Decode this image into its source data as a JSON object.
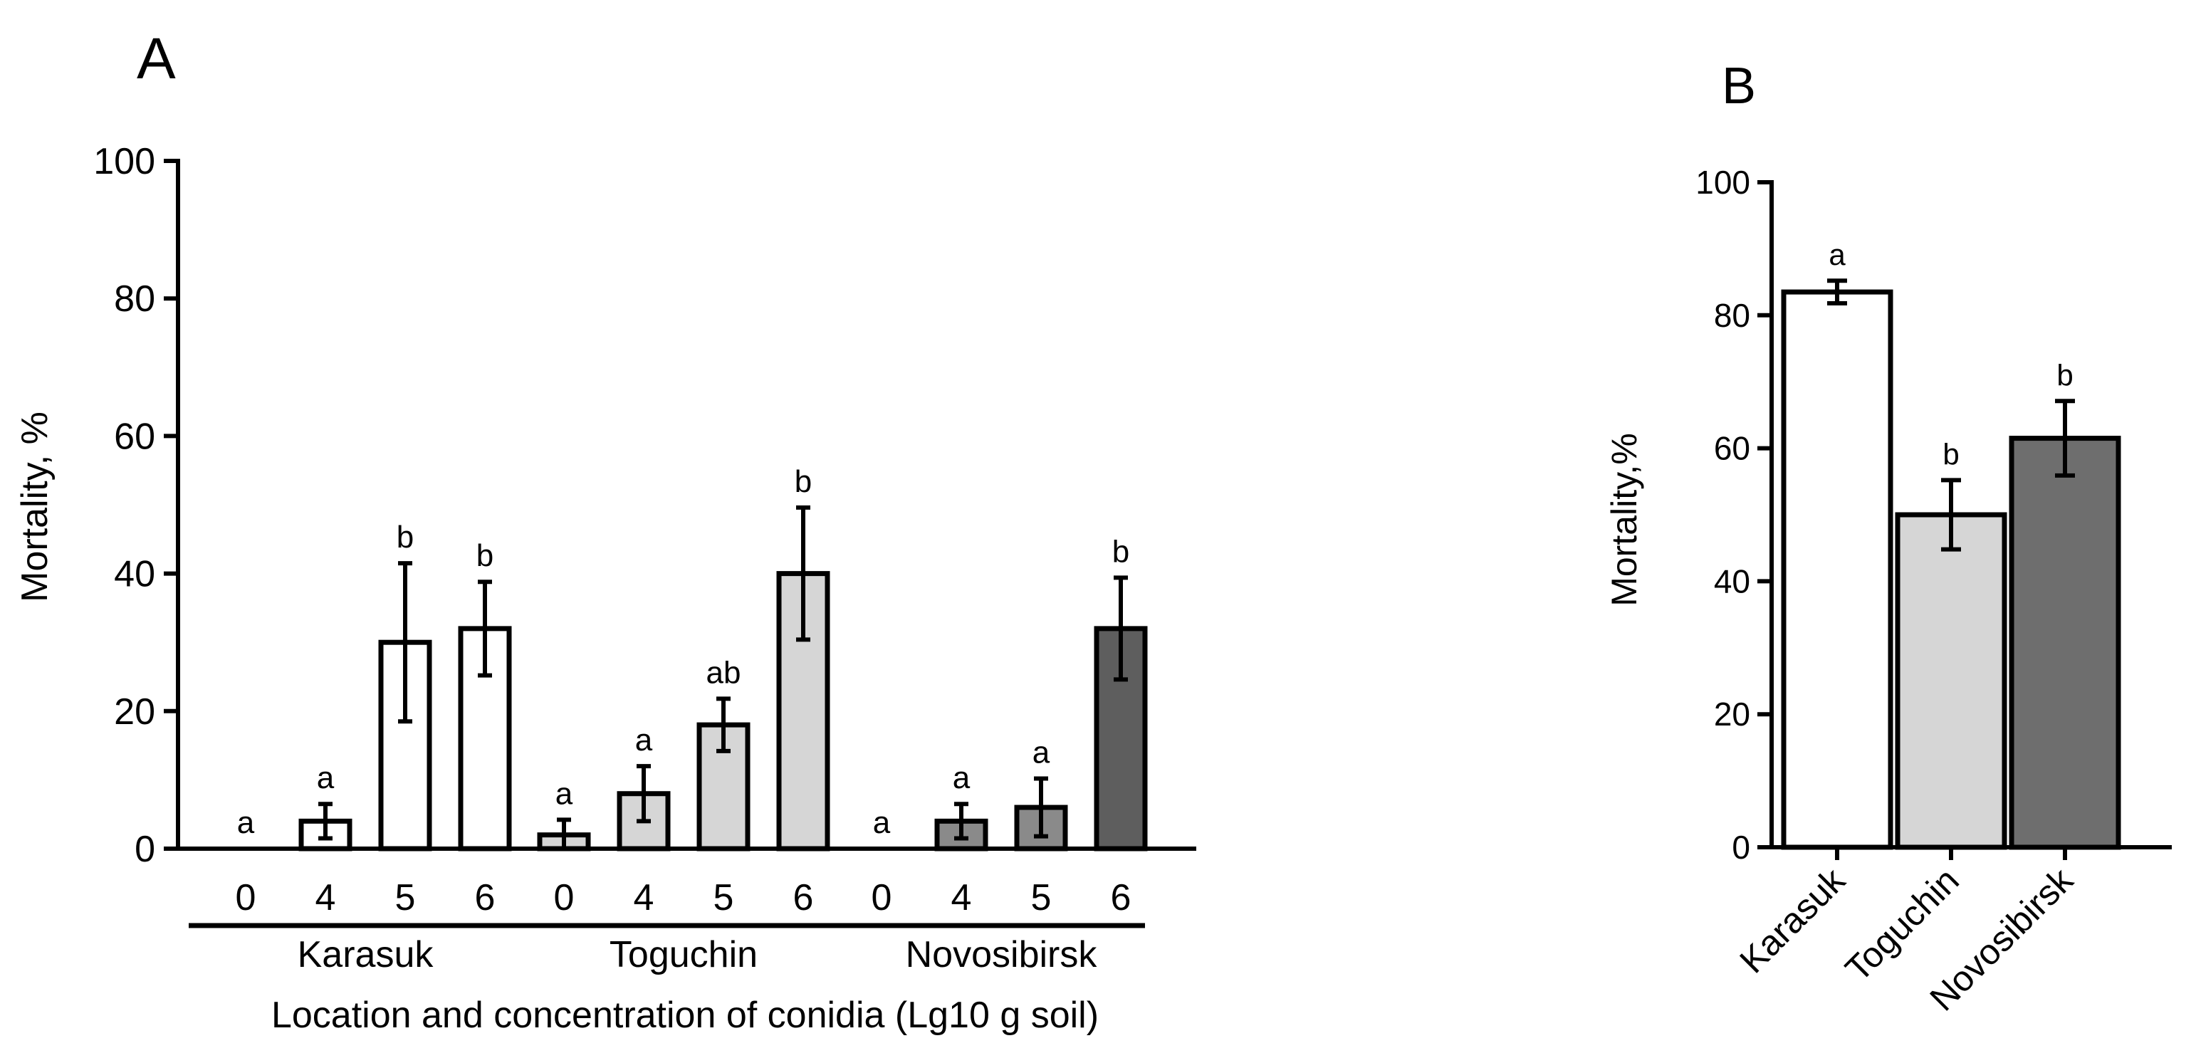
{
  "panels": [
    {
      "letter": "A"
    },
    {
      "letter": "B"
    }
  ],
  "chart_data": [
    {
      "type": "bar",
      "panel": "A",
      "ylabel": "Mortality, %",
      "xlabel": "Location and concentration of conidia (Lg10 g soil)",
      "ylim": [
        0,
        100
      ],
      "yticks": [
        0,
        20,
        40,
        60,
        80,
        100
      ],
      "grid": false,
      "groups": [
        {
          "name": "Karasuk",
          "color": "#ffffff",
          "categories": [
            "0",
            "4",
            "5",
            "6"
          ],
          "values": [
            0,
            4,
            30,
            32
          ],
          "errors": [
            0,
            2.5,
            11.5,
            6.8
          ],
          "letters": [
            "a",
            "a",
            "b",
            "b"
          ]
        },
        {
          "name": "Toguchin",
          "color": "#d6d6d6",
          "categories": [
            "0",
            "4",
            "5",
            "6"
          ],
          "values": [
            2,
            8,
            18,
            40
          ],
          "errors": [
            2.2,
            4,
            3.8,
            9.6
          ],
          "letters": [
            "a",
            "a",
            "ab",
            "b"
          ]
        },
        {
          "name": "Novosibirsk",
          "color": "#8a8a8a",
          "categories": [
            "0",
            "4",
            "5",
            "6"
          ],
          "values": [
            0,
            4,
            6,
            32
          ],
          "errors": [
            0,
            2.5,
            4.2,
            7.4
          ],
          "letters": [
            "a",
            "a",
            "a",
            "b"
          ],
          "last_color": "#5e5e5e"
        }
      ]
    },
    {
      "type": "bar",
      "panel": "B",
      "ylabel": "Mortality,%",
      "xlabel": "",
      "ylim": [
        0,
        100
      ],
      "yticks": [
        0,
        20,
        40,
        60,
        80,
        100
      ],
      "grid": false,
      "categories": [
        "Karasuk",
        "Toguchin",
        "Novosibirsk"
      ],
      "values": [
        83.5,
        50,
        61.5
      ],
      "errors": [
        1.7,
        5.2,
        5.6
      ],
      "letters": [
        "a",
        "b",
        "b"
      ],
      "colors": [
        "#ffffff",
        "#d6d6d6",
        "#6e6e6e"
      ]
    }
  ]
}
